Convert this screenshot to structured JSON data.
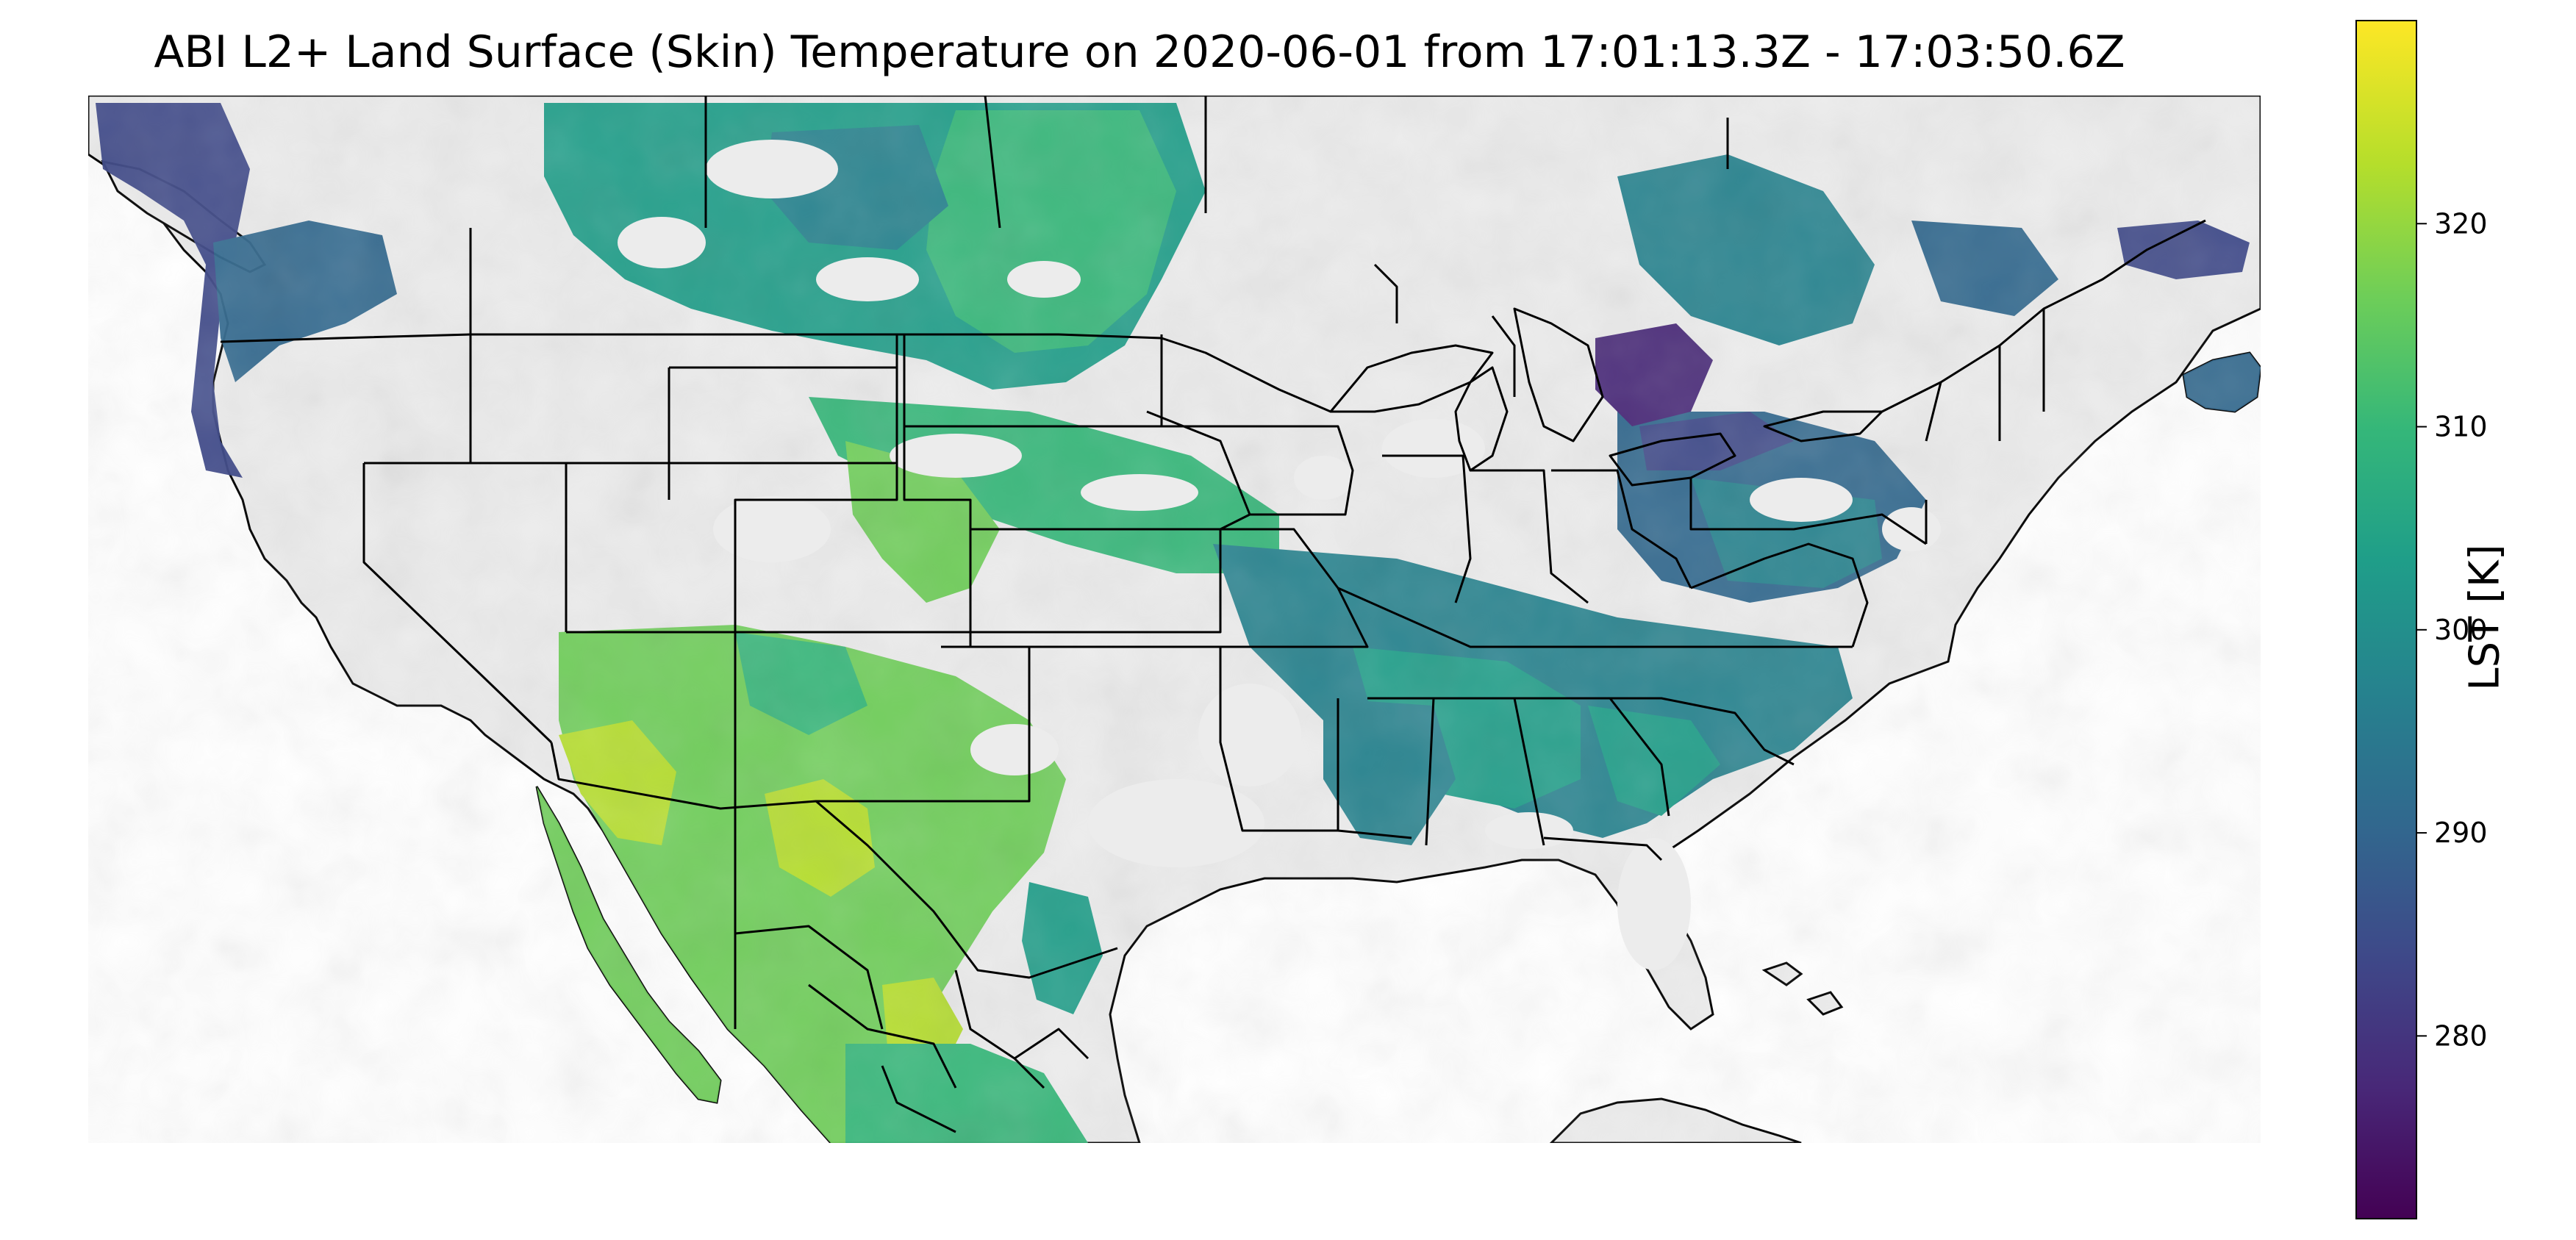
{
  "title": "ABI L2+ Land Surface (Skin) Temperature on 2020-06-01 from 17:01:13.3Z - 17:03:50.6Z",
  "colorbar": {
    "label": "LST [K]",
    "ticks": [
      280,
      290,
      300,
      310,
      320
    ],
    "range": [
      271,
      330
    ],
    "colormap": "viridis",
    "colors": [
      "#440154",
      "#482878",
      "#3e4989",
      "#31688e",
      "#26828e",
      "#1f9e89",
      "#35b779",
      "#6ece58",
      "#b5de2b",
      "#fde725"
    ]
  },
  "map": {
    "region": "Contiguous United States, southern Canada, northern Mexico, Cuba",
    "land_color": "#ececec",
    "ocean_color": "#ffffff",
    "border_color": "#000000"
  }
}
